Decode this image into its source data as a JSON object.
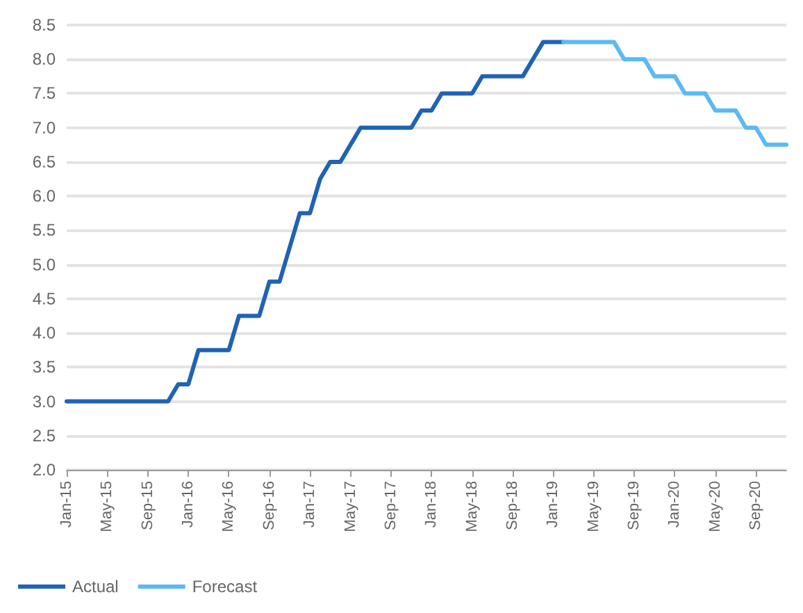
{
  "chart_data": {
    "type": "line",
    "categories": [
      "Jan-15",
      null,
      null,
      null,
      "May-15",
      null,
      null,
      null,
      "Sep-15",
      null,
      null,
      null,
      "Jan-16",
      null,
      null,
      null,
      "May-16",
      null,
      null,
      null,
      "Sep-16",
      null,
      null,
      null,
      "Jan-17",
      null,
      null,
      null,
      "May-17",
      null,
      null,
      null,
      "Sep-17",
      null,
      null,
      null,
      "Jan-18",
      null,
      null,
      null,
      "May-18",
      null,
      null,
      null,
      "Sep-18",
      null,
      null,
      null,
      "Jan-19",
      null,
      null,
      null,
      "May-19",
      null,
      null,
      null,
      "Sep-19",
      null,
      null,
      null,
      "Jan-20",
      null,
      null,
      null,
      "May-20",
      null,
      null,
      null,
      "Sep-20",
      null,
      null,
      null
    ],
    "series": [
      {
        "name": "Actual",
        "color": "#1f63b4",
        "values": [
          3.0,
          3.0,
          3.0,
          3.0,
          3.0,
          3.0,
          3.0,
          3.0,
          3.0,
          3.0,
          3.0,
          3.25,
          3.25,
          3.75,
          3.75,
          3.75,
          3.75,
          4.25,
          4.25,
          4.25,
          4.75,
          4.75,
          5.25,
          5.75,
          5.75,
          6.25,
          6.5,
          6.5,
          6.75,
          7.0,
          7.0,
          7.0,
          7.0,
          7.0,
          7.0,
          7.25,
          7.25,
          7.5,
          7.5,
          7.5,
          7.5,
          7.75,
          7.75,
          7.75,
          7.75,
          7.75,
          8.0,
          8.25,
          8.25,
          8.25,
          null,
          null,
          null,
          null,
          null,
          null,
          null,
          null,
          null,
          null,
          null,
          null,
          null,
          null,
          null,
          null,
          null,
          null,
          null,
          null,
          null,
          null
        ]
      },
      {
        "name": "Forecast",
        "color": "#5bb9f3",
        "values": [
          null,
          null,
          null,
          null,
          null,
          null,
          null,
          null,
          null,
          null,
          null,
          null,
          null,
          null,
          null,
          null,
          null,
          null,
          null,
          null,
          null,
          null,
          null,
          null,
          null,
          null,
          null,
          null,
          null,
          null,
          null,
          null,
          null,
          null,
          null,
          null,
          null,
          null,
          null,
          null,
          null,
          null,
          null,
          null,
          null,
          null,
          null,
          null,
          null,
          8.25,
          8.25,
          8.25,
          8.25,
          8.25,
          8.25,
          8.0,
          8.0,
          8.0,
          7.75,
          7.75,
          7.75,
          7.5,
          7.5,
          7.5,
          7.25,
          7.25,
          7.25,
          7.0,
          7.0,
          6.75,
          6.75,
          6.75
        ]
      }
    ],
    "ylim": [
      2.0,
      8.5
    ],
    "yticks": [
      {
        "value": 2,
        "label": "2.0"
      },
      2.5,
      {
        "value": 3,
        "label": "3.0"
      },
      3.5,
      {
        "value": 4,
        "label": "4.0"
      },
      4.5,
      {
        "value": 5,
        "label": "5.0"
      },
      5.5,
      {
        "value": 6,
        "label": "6.0"
      },
      6.5,
      {
        "value": 7,
        "label": "7.0"
      },
      7.5,
      {
        "value": 8,
        "label": "8.0"
      },
      8.5
    ],
    "grid": "y",
    "legend": "bottom left",
    "marker": "none",
    "line_style": "solid"
  }
}
